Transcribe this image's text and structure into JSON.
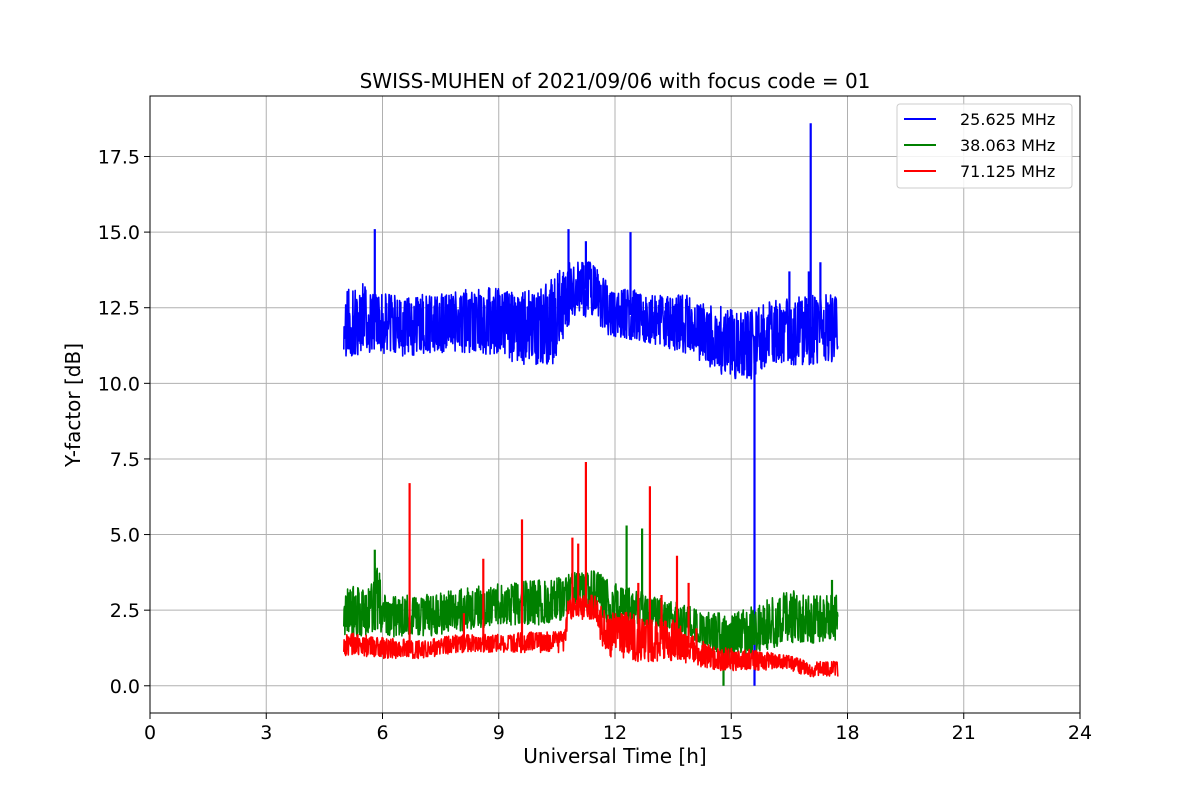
{
  "chart_data": {
    "type": "line",
    "title": "SWISS-MUHEN of 2021/09/06 with focus code = 01",
    "xlabel": "Universal Time [h]",
    "ylabel": "Y-factor [dB]",
    "xlim": [
      0,
      24
    ],
    "ylim": [
      -0.9,
      19.5
    ],
    "xticks": [
      0,
      3,
      6,
      9,
      12,
      15,
      18,
      21,
      24
    ],
    "yticks": [
      0.0,
      2.5,
      5.0,
      7.5,
      10.0,
      12.5,
      15.0,
      17.5
    ],
    "xtick_labels": [
      "0",
      "3",
      "6",
      "9",
      "12",
      "15",
      "18",
      "21",
      "24"
    ],
    "ytick_labels": [
      "0.0",
      "2.5",
      "5.0",
      "7.5",
      "10.0",
      "12.5",
      "15.0",
      "17.5"
    ],
    "grid": true,
    "legend_position": "top-right",
    "series": [
      {
        "name": "25.625 MHz",
        "color": "#0000ff",
        "base_band": [
          [
            5.0,
            10.9,
            13.1
          ],
          [
            5.5,
            10.9,
            13.3
          ],
          [
            5.85,
            11.0,
            13.0
          ],
          [
            6.5,
            10.9,
            12.9
          ],
          [
            7.5,
            11.0,
            13.0
          ],
          [
            8.5,
            11.0,
            13.2
          ],
          [
            9.5,
            10.6,
            13.1
          ],
          [
            10.4,
            10.6,
            13.5
          ],
          [
            10.9,
            12.2,
            14.2
          ],
          [
            11.4,
            12.2,
            14.0
          ],
          [
            11.9,
            11.5,
            13.2
          ],
          [
            13.0,
            11.3,
            13.0
          ],
          [
            14.0,
            10.9,
            12.9
          ],
          [
            14.5,
            10.5,
            12.6
          ],
          [
            15.0,
            10.1,
            12.5
          ],
          [
            15.5,
            10.1,
            12.4
          ],
          [
            16.0,
            10.6,
            12.7
          ],
          [
            17.0,
            10.6,
            13.0
          ],
          [
            17.75,
            10.7,
            12.9
          ]
        ],
        "peaks": [
          [
            5.8,
            15.1
          ],
          [
            10.8,
            15.1
          ],
          [
            11.25,
            14.7
          ],
          [
            12.4,
            15.0
          ],
          [
            15.6,
            0.0
          ],
          [
            16.5,
            13.7
          ],
          [
            17.0,
            13.7
          ],
          [
            17.05,
            18.6
          ],
          [
            17.3,
            14.0
          ]
        ]
      },
      {
        "name": "38.063 MHz",
        "color": "#008000",
        "base_band": [
          [
            5.0,
            1.6,
            3.3
          ],
          [
            5.7,
            1.6,
            3.3
          ],
          [
            5.85,
            1.8,
            4.5
          ],
          [
            6.0,
            1.6,
            3.0
          ],
          [
            7.0,
            1.6,
            3.0
          ],
          [
            8.0,
            1.8,
            3.2
          ],
          [
            9.0,
            2.0,
            3.4
          ],
          [
            10.0,
            2.0,
            3.5
          ],
          [
            10.7,
            2.2,
            3.6
          ],
          [
            11.0,
            2.6,
            3.9
          ],
          [
            11.5,
            2.4,
            3.8
          ],
          [
            12.0,
            1.9,
            3.4
          ],
          [
            13.0,
            1.9,
            3.0
          ],
          [
            14.0,
            1.5,
            2.6
          ],
          [
            14.8,
            0.8,
            2.4
          ],
          [
            15.5,
            1.0,
            2.6
          ],
          [
            16.5,
            1.4,
            3.2
          ],
          [
            17.0,
            1.4,
            3.0
          ],
          [
            17.75,
            1.4,
            3.0
          ]
        ],
        "peaks": [
          [
            5.8,
            4.5
          ],
          [
            12.3,
            5.3
          ],
          [
            12.7,
            5.2
          ],
          [
            14.8,
            0.0
          ],
          [
            17.6,
            3.5
          ]
        ]
      },
      {
        "name": "71.125 MHz",
        "color": "#ff0000",
        "base_band": [
          [
            5.0,
            1.0,
            1.8
          ],
          [
            6.0,
            0.9,
            1.6
          ],
          [
            7.0,
            0.9,
            1.5
          ],
          [
            8.0,
            1.1,
            1.7
          ],
          [
            9.0,
            1.1,
            1.7
          ],
          [
            10.0,
            1.1,
            1.8
          ],
          [
            10.7,
            1.1,
            1.8
          ],
          [
            10.8,
            2.2,
            3.0
          ],
          [
            11.5,
            2.2,
            3.0
          ],
          [
            11.7,
            1.0,
            2.5
          ],
          [
            12.5,
            0.8,
            2.4
          ],
          [
            13.5,
            0.8,
            2.2
          ],
          [
            14.0,
            0.7,
            1.7
          ],
          [
            14.5,
            0.5,
            1.3
          ],
          [
            15.5,
            0.5,
            1.2
          ],
          [
            16.5,
            0.5,
            1.0
          ],
          [
            17.0,
            0.3,
            0.8
          ],
          [
            17.75,
            0.3,
            0.8
          ]
        ],
        "peaks": [
          [
            6.7,
            6.7
          ],
          [
            8.1,
            2.4
          ],
          [
            8.6,
            4.2
          ],
          [
            9.6,
            5.5
          ],
          [
            10.9,
            4.9
          ],
          [
            11.05,
            4.7
          ],
          [
            11.25,
            7.4
          ],
          [
            12.6,
            3.4
          ],
          [
            12.9,
            6.6
          ],
          [
            13.2,
            3.0
          ],
          [
            13.6,
            4.3
          ],
          [
            13.9,
            3.4
          ],
          [
            14.1,
            1.9
          ]
        ]
      }
    ]
  }
}
